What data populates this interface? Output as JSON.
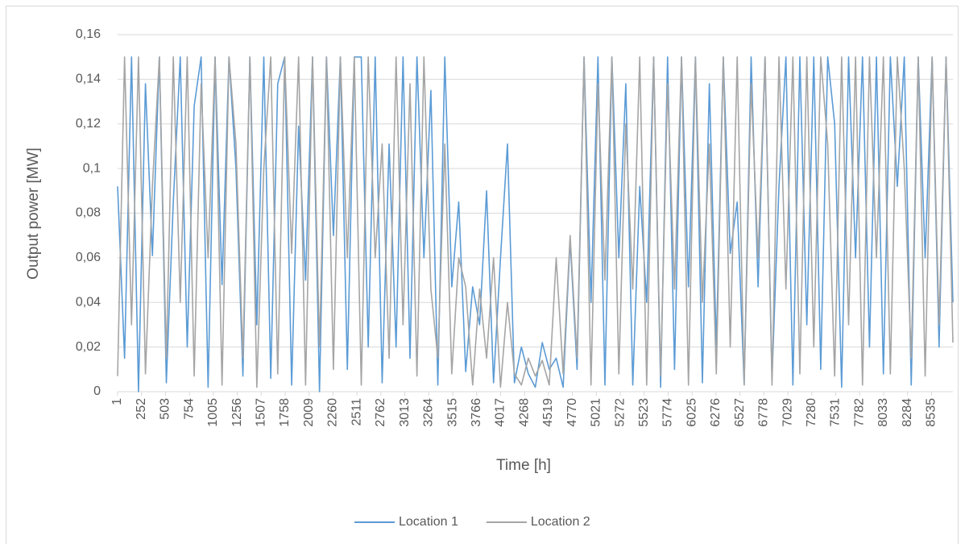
{
  "chart_data": {
    "type": "line",
    "x_label": "Time [h]",
    "y_label": "Output power [MW]",
    "x": [
      1,
      74,
      147,
      220,
      293,
      366,
      439,
      512,
      585,
      658,
      731,
      804,
      877,
      950,
      1023,
      1096,
      1169,
      1242,
      1315,
      1388,
      1461,
      1534,
      1607,
      1680,
      1753,
      1826,
      1899,
      1972,
      2045,
      2118,
      2191,
      2264,
      2337,
      2410,
      2483,
      2556,
      2629,
      2702,
      2775,
      2848,
      2921,
      2994,
      3067,
      3140,
      3213,
      3286,
      3359,
      3432,
      3505,
      3578,
      3651,
      3724,
      3797,
      3870,
      3943,
      4016,
      4089,
      4162,
      4235,
      4308,
      4381,
      4454,
      4527,
      4600,
      4673,
      4746,
      4819,
      4892,
      4965,
      5038,
      5111,
      5184,
      5257,
      5330,
      5403,
      5476,
      5549,
      5622,
      5695,
      5768,
      5841,
      5914,
      5987,
      6060,
      6133,
      6206,
      6279,
      6352,
      6425,
      6498,
      6571,
      6644,
      6717,
      6790,
      6863,
      6936,
      7009,
      7082,
      7155,
      7228,
      7301,
      7374,
      7447,
      7520,
      7593,
      7666,
      7739,
      7812,
      7885,
      7958,
      8031,
      8104,
      8177,
      8250,
      8323,
      8396,
      8469,
      8542,
      8615,
      8688,
      8760
    ],
    "series": [
      {
        "name": "Location 1",
        "color": "#5b9bd5",
        "values": [
          0.092,
          0.015,
          0.15,
          0,
          0.138,
          0.061,
          0.15,
          0.004,
          0.085,
          0.15,
          0.02,
          0.128,
          0.15,
          0.002,
          0.15,
          0.048,
          0.15,
          0.1,
          0.007,
          0.15,
          0.03,
          0.15,
          0.006,
          0.138,
          0.15,
          0.003,
          0.119,
          0.05,
          0.15,
          0,
          0.15,
          0.07,
          0.15,
          0.01,
          0.15,
          0.15,
          0.02,
          0.15,
          0.004,
          0.111,
          0.02,
          0.15,
          0.015,
          0.15,
          0.06,
          0.135,
          0.003,
          0.15,
          0.047,
          0.085,
          0.009,
          0.047,
          0.03,
          0.09,
          0.004,
          0.06,
          0.111,
          0.004,
          0.02,
          0.008,
          0.002,
          0.022,
          0.01,
          0.015,
          0.002,
          0.068,
          0.01,
          0.15,
          0.04,
          0.15,
          0.003,
          0.15,
          0.06,
          0.138,
          0.003,
          0.092,
          0.04,
          0.15,
          0.002,
          0.15,
          0.01,
          0.15,
          0.047,
          0.15,
          0.004,
          0.138,
          0.02,
          0.15,
          0.062,
          0.085,
          0.003,
          0.15,
          0.047,
          0.15,
          0.006,
          0.092,
          0.15,
          0.003,
          0.15,
          0.03,
          0.15,
          0.01,
          0.15,
          0.12,
          0.002,
          0.15,
          0.06,
          0.15,
          0.02,
          0.15,
          0.008,
          0.15,
          0.092,
          0.15,
          0.003,
          0.15,
          0.06,
          0.15,
          0.02,
          0.15,
          0.04
        ]
      },
      {
        "name": "Location 2",
        "color": "#a5a5a5",
        "values": [
          0.007,
          0.15,
          0.03,
          0.15,
          0.008,
          0.092,
          0.15,
          0.015,
          0.15,
          0.04,
          0.15,
          0.007,
          0.138,
          0.06,
          0.15,
          0.003,
          0.15,
          0.111,
          0.015,
          0.15,
          0.002,
          0.1,
          0.15,
          0.008,
          0.15,
          0.062,
          0.15,
          0.003,
          0.15,
          0.02,
          0.15,
          0.01,
          0.15,
          0.06,
          0.15,
          0.003,
          0.15,
          0.06,
          0.111,
          0.015,
          0.15,
          0.03,
          0.138,
          0.007,
          0.15,
          0.046,
          0.015,
          0.111,
          0.008,
          0.06,
          0.047,
          0.003,
          0.046,
          0.015,
          0.06,
          0.002,
          0.04,
          0.008,
          0.003,
          0.015,
          0.007,
          0.014,
          0.003,
          0.06,
          0.008,
          0.07,
          0.015,
          0.15,
          0.003,
          0.138,
          0.05,
          0.15,
          0.008,
          0.12,
          0.046,
          0.15,
          0.003,
          0.15,
          0.007,
          0.138,
          0.046,
          0.15,
          0.003,
          0.15,
          0.04,
          0.111,
          0.008,
          0.15,
          0.02,
          0.15,
          0.003,
          0.138,
          0.06,
          0.15,
          0.003,
          0.15,
          0.046,
          0.15,
          0.008,
          0.15,
          0.02,
          0.15,
          0.111,
          0.007,
          0.15,
          0.03,
          0.15,
          0.003,
          0.15,
          0.06,
          0.15,
          0.008,
          0.15,
          0.1,
          0.015,
          0.15,
          0.007,
          0.15,
          0.03,
          0.15,
          0.022
        ]
      }
    ],
    "xlim": [
      1,
      8760
    ],
    "xticks": [
      1,
      252,
      503,
      754,
      1005,
      1256,
      1507,
      1758,
      2009,
      2260,
      2511,
      2762,
      3013,
      3264,
      3515,
      3766,
      4017,
      4268,
      4519,
      4770,
      5021,
      5272,
      5523,
      5774,
      6025,
      6276,
      6527,
      6778,
      7029,
      7280,
      7531,
      7782,
      8033,
      8284,
      8535
    ],
    "ylim": [
      0,
      0.16
    ],
    "yticks": [
      0,
      {
        "value": 0.02,
        "label": "0,02"
      },
      {
        "value": 0.04,
        "label": "0,04"
      },
      {
        "value": 0.06,
        "label": "0,06"
      },
      {
        "value": 0.08,
        "label": "0,08"
      },
      {
        "value": 0.1,
        "label": "0,1"
      },
      {
        "value": 0.12,
        "label": "0,12"
      },
      {
        "value": 0.14,
        "label": "0,14"
      },
      {
        "value": 0.16,
        "label": "0,16"
      }
    ],
    "grid": true,
    "legend": "bottom"
  }
}
